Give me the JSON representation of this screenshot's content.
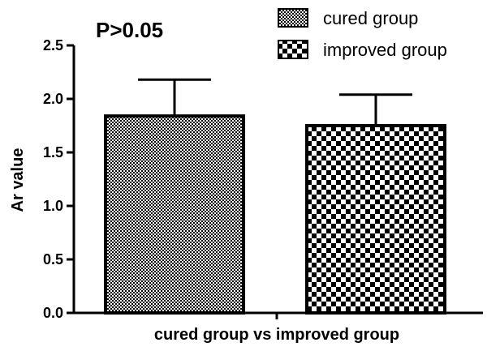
{
  "chart_data": {
    "type": "bar",
    "categories": [
      "cured group",
      "improved group"
    ],
    "values": [
      1.84,
      1.75
    ],
    "error_bars": [
      0.34,
      0.29
    ],
    "ylim": [
      0,
      2.5
    ],
    "yticks": [
      "0.0",
      "0.5",
      "1.0",
      "1.5",
      "2.0",
      "2.5"
    ],
    "xlabel": "cured group vs improved group",
    "ylabel": "Ar value",
    "annotation": "P>0.05",
    "legend": {
      "position": "top-right",
      "entries": [
        "cured group",
        "improved group"
      ]
    },
    "patterns": [
      "fine-checker",
      "coarse-checker"
    ],
    "grid": false
  }
}
